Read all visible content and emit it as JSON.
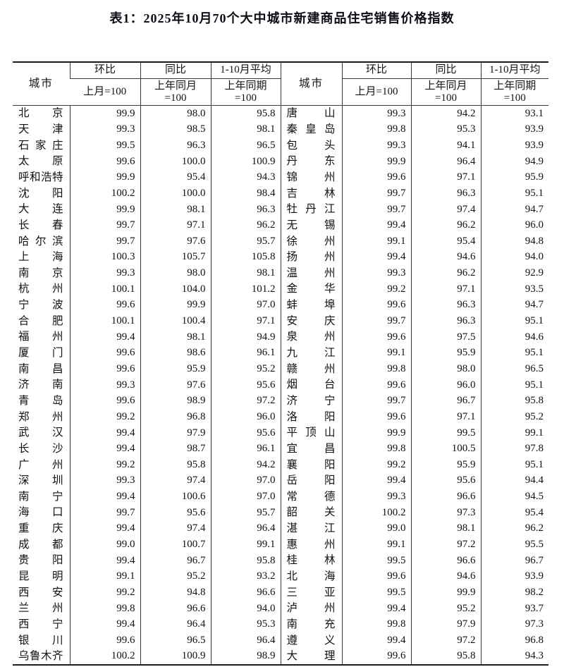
{
  "title": "表1：2025年10月70个大中城市新建商品住宅销售价格指数",
  "header": {
    "city": "城市",
    "mom": "环比",
    "mom_base": "上月=100",
    "yoy": "同比",
    "yoy_base_line1": "上年同月",
    "yoy_base_line2": "=100",
    "avg": "1-10月平均",
    "avg_base_line1": "上年同期",
    "avg_base_line2": "=100"
  },
  "left_rows": [
    [
      "北京",
      "99.9",
      "98.0",
      "95.8"
    ],
    [
      "天津",
      "99.3",
      "98.5",
      "98.1"
    ],
    [
      "石家庄",
      "99.5",
      "96.3",
      "96.5"
    ],
    [
      "太原",
      "99.6",
      "100.0",
      "100.9"
    ],
    [
      "呼和浩特",
      "99.9",
      "95.4",
      "94.3"
    ],
    [
      "沈阳",
      "100.2",
      "100.0",
      "98.4"
    ],
    [
      "大连",
      "99.9",
      "98.1",
      "96.3"
    ],
    [
      "长春",
      "99.7",
      "97.1",
      "96.2"
    ],
    [
      "哈尔滨",
      "99.7",
      "97.6",
      "95.7"
    ],
    [
      "上海",
      "100.3",
      "105.7",
      "105.8"
    ],
    [
      "南京",
      "99.3",
      "98.0",
      "98.1"
    ],
    [
      "杭州",
      "100.1",
      "104.0",
      "101.2"
    ],
    [
      "宁波",
      "99.6",
      "99.9",
      "97.0"
    ],
    [
      "合肥",
      "100.1",
      "100.4",
      "97.1"
    ],
    [
      "福州",
      "99.4",
      "98.1",
      "94.9"
    ],
    [
      "厦门",
      "99.6",
      "98.6",
      "96.1"
    ],
    [
      "南昌",
      "99.6",
      "95.9",
      "95.2"
    ],
    [
      "济南",
      "99.3",
      "97.6",
      "95.6"
    ],
    [
      "青岛",
      "99.6",
      "98.9",
      "97.2"
    ],
    [
      "郑州",
      "99.2",
      "96.8",
      "96.0"
    ],
    [
      "武汉",
      "99.4",
      "97.9",
      "95.6"
    ],
    [
      "长沙",
      "99.4",
      "98.7",
      "96.1"
    ],
    [
      "广州",
      "99.2",
      "95.8",
      "94.2"
    ],
    [
      "深圳",
      "99.3",
      "97.4",
      "97.0"
    ],
    [
      "南宁",
      "99.4",
      "100.6",
      "97.0"
    ],
    [
      "海口",
      "99.7",
      "95.6",
      "95.7"
    ],
    [
      "重庆",
      "99.4",
      "97.4",
      "96.4"
    ],
    [
      "成都",
      "99.0",
      "100.7",
      "99.1"
    ],
    [
      "贵阳",
      "99.4",
      "96.7",
      "95.8"
    ],
    [
      "昆明",
      "99.1",
      "95.2",
      "93.2"
    ],
    [
      "西安",
      "99.2",
      "94.8",
      "96.6"
    ],
    [
      "兰州",
      "99.8",
      "96.6",
      "94.0"
    ],
    [
      "西宁",
      "99.4",
      "96.4",
      "95.3"
    ],
    [
      "银川",
      "99.6",
      "96.5",
      "96.4"
    ],
    [
      "乌鲁木齐",
      "100.2",
      "100.9",
      "98.9"
    ]
  ],
  "right_rows": [
    [
      "唐山",
      "99.3",
      "94.2",
      "93.1"
    ],
    [
      "秦皇岛",
      "99.8",
      "95.3",
      "93.9"
    ],
    [
      "包头",
      "99.3",
      "94.1",
      "93.9"
    ],
    [
      "丹东",
      "99.9",
      "96.4",
      "94.9"
    ],
    [
      "锦州",
      "99.6",
      "97.1",
      "95.9"
    ],
    [
      "吉林",
      "99.7",
      "96.3",
      "95.1"
    ],
    [
      "牡丹江",
      "99.7",
      "97.4",
      "94.7"
    ],
    [
      "无锡",
      "99.4",
      "96.2",
      "96.0"
    ],
    [
      "徐州",
      "99.1",
      "95.4",
      "94.8"
    ],
    [
      "扬州",
      "99.4",
      "94.6",
      "94.0"
    ],
    [
      "温州",
      "99.3",
      "96.2",
      "92.9"
    ],
    [
      "金华",
      "99.2",
      "97.1",
      "93.5"
    ],
    [
      "蚌埠",
      "99.6",
      "96.3",
      "94.7"
    ],
    [
      "安庆",
      "99.7",
      "96.3",
      "95.1"
    ],
    [
      "泉州",
      "99.6",
      "97.5",
      "94.6"
    ],
    [
      "九江",
      "99.1",
      "95.9",
      "95.1"
    ],
    [
      "赣州",
      "99.8",
      "98.0",
      "96.5"
    ],
    [
      "烟台",
      "99.6",
      "96.0",
      "95.1"
    ],
    [
      "济宁",
      "99.7",
      "96.7",
      "95.8"
    ],
    [
      "洛阳",
      "99.6",
      "97.1",
      "95.2"
    ],
    [
      "平顶山",
      "99.9",
      "99.5",
      "99.1"
    ],
    [
      "宜昌",
      "99.8",
      "100.5",
      "97.8"
    ],
    [
      "襄阳",
      "99.2",
      "95.9",
      "95.1"
    ],
    [
      "岳阳",
      "99.4",
      "95.6",
      "94.4"
    ],
    [
      "常德",
      "99.3",
      "96.6",
      "94.5"
    ],
    [
      "韶关",
      "100.2",
      "97.3",
      "95.4"
    ],
    [
      "湛江",
      "99.0",
      "98.1",
      "96.2"
    ],
    [
      "惠州",
      "99.1",
      "97.2",
      "95.5"
    ],
    [
      "桂林",
      "99.5",
      "96.6",
      "96.7"
    ],
    [
      "北海",
      "99.6",
      "94.6",
      "93.9"
    ],
    [
      "三亚",
      "99.5",
      "99.9",
      "98.2"
    ],
    [
      "泸州",
      "99.4",
      "95.2",
      "93.7"
    ],
    [
      "南充",
      "99.8",
      "97.9",
      "97.3"
    ],
    [
      "遵义",
      "99.4",
      "97.2",
      "96.8"
    ],
    [
      "大理",
      "99.6",
      "95.8",
      "94.3"
    ]
  ]
}
